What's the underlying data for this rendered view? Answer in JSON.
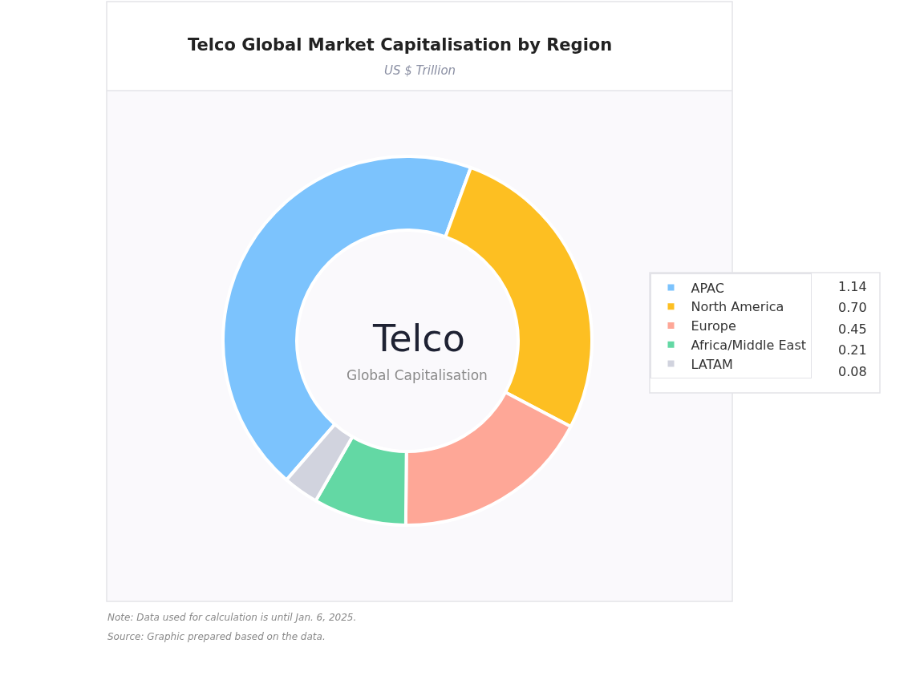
{
  "chart_data": {
    "type": "donut",
    "title": "Telco Global Market Capitalisation by Region",
    "subtitle": "US $ Trillion",
    "categories": [
      "APAC",
      "North America",
      "Europe",
      "Africa/Middle East",
      "LATAM"
    ],
    "values": [
      1.14,
      0.7,
      0.45,
      0.21,
      0.08
    ],
    "value_labels": [
      "1.14",
      "0.70",
      "0.45",
      "0.21",
      "0.08"
    ],
    "colors": [
      "#7cc3fd",
      "#fdbf22",
      "#fea797",
      "#63d8a4",
      "#d1d3de"
    ],
    "legend": "right",
    "annotations": [
      "Telco",
      "Global Capitalisation",
      "Note: Data used for calculation is until Jan. 6, 2025.",
      "Source: Graphic prepared based on the data."
    ]
  }
}
